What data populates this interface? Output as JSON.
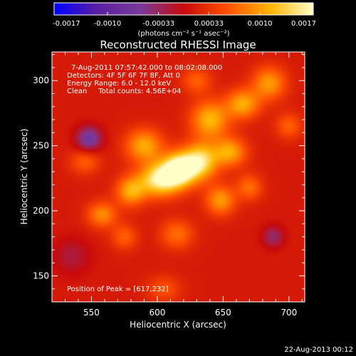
{
  "chart_data": {
    "type": "heatmap",
    "title": "Reconstructed RHESSI Image",
    "xlabel": "Heliocentric X (arcsec)",
    "ylabel": "Heliocentric Y (arcsec)",
    "xlim": [
      520,
      712
    ],
    "ylim": [
      130,
      322
    ],
    "x_ticks": [
      550,
      600,
      650,
      700
    ],
    "y_ticks": [
      150,
      200,
      250,
      300
    ],
    "colorbar": {
      "range": [
        -0.0017,
        0.0017
      ],
      "ticks": [
        "-0.0017",
        "-0.0010",
        "-0.00033",
        "0.00033",
        "0.0010",
        "0.0017"
      ],
      "unit_label": "(photons cm⁻² s⁻¹ asec⁻²)",
      "colormap": [
        "#0000ff",
        "#5a1fa0",
        "#7a3a9a",
        "#c80a0a",
        "#ff5000",
        "#ffb400",
        "#ffffc8"
      ]
    },
    "annotations": [
      "7-Aug-2011 07:57:42.000 to 08:02:08.000",
      "Detectors: 4F 5F 6F 7F 8F, Att 0",
      "Energy Range: 6.0 - 12.0 keV",
      "Clean     Total counts: 4.56E+04"
    ],
    "peak_label": "Position of Peak = [617,232]",
    "peak_value": 0.0017,
    "peak_position": [
      617,
      232
    ],
    "sources": [
      {
        "x": 617,
        "y": 232,
        "amp": 1.0,
        "sx": 9,
        "sy": 9
      },
      {
        "x": 602,
        "y": 224,
        "amp": 0.85,
        "sx": 11,
        "sy": 9
      },
      {
        "x": 633,
        "y": 238,
        "amp": 0.75,
        "sx": 9,
        "sy": 10
      },
      {
        "x": 590,
        "y": 250,
        "amp": 0.55,
        "sx": 10,
        "sy": 9
      },
      {
        "x": 580,
        "y": 215,
        "amp": 0.55,
        "sx": 8,
        "sy": 8
      },
      {
        "x": 640,
        "y": 270,
        "amp": 0.6,
        "sx": 10,
        "sy": 10
      },
      {
        "x": 665,
        "y": 282,
        "amp": 0.55,
        "sx": 9,
        "sy": 8
      },
      {
        "x": 685,
        "y": 298,
        "amp": 0.5,
        "sx": 9,
        "sy": 9
      },
      {
        "x": 655,
        "y": 245,
        "amp": 0.55,
        "sx": 9,
        "sy": 8
      },
      {
        "x": 648,
        "y": 208,
        "amp": 0.5,
        "sx": 8,
        "sy": 8
      },
      {
        "x": 558,
        "y": 197,
        "amp": 0.45,
        "sx": 8,
        "sy": 7
      },
      {
        "x": 575,
        "y": 180,
        "amp": 0.3,
        "sx": 7,
        "sy": 7
      },
      {
        "x": 615,
        "y": 182,
        "amp": 0.35,
        "sx": 9,
        "sy": 8
      },
      {
        "x": 670,
        "y": 218,
        "amp": 0.35,
        "sx": 7,
        "sy": 7
      },
      {
        "x": 545,
        "y": 238,
        "amp": 0.3,
        "sx": 8,
        "sy": 7
      },
      {
        "x": 630,
        "y": 300,
        "amp": 0.3,
        "sx": 8,
        "sy": 7
      },
      {
        "x": 700,
        "y": 265,
        "amp": 0.3,
        "sx": 7,
        "sy": 7
      },
      {
        "x": 605,
        "y": 140,
        "amp": 0.25,
        "sx": 9,
        "sy": 7
      },
      {
        "x": 548,
        "y": 255,
        "amp": -0.5,
        "sx": 7,
        "sy": 7
      },
      {
        "x": 688,
        "y": 180,
        "amp": -0.3,
        "sx": 6,
        "sy": 6
      },
      {
        "x": 535,
        "y": 165,
        "amp": -0.2,
        "sx": 10,
        "sy": 10
      }
    ]
  },
  "footer": {
    "date": "22-Aug-2013 00:12"
  }
}
